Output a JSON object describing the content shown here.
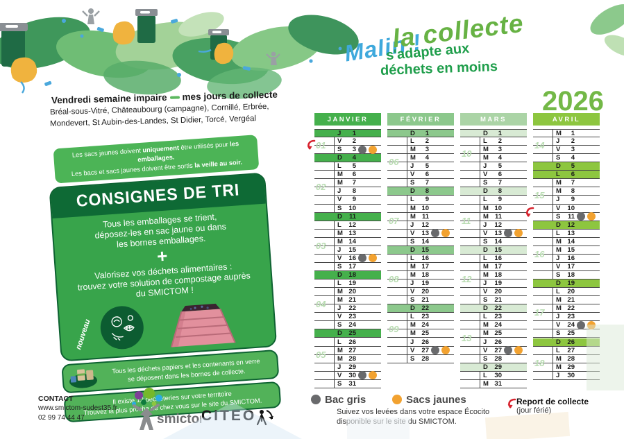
{
  "header": {
    "malin": "Malin !",
    "la_collecte": "la collecte",
    "subtitle_line1": "s'adapte aux",
    "subtitle_line2": "déchets en moins",
    "year": "2026"
  },
  "intro": {
    "title_left": "Vendredi semaine impaire",
    "title_right": "mes jours de collecte",
    "towns_line1": "Bréal-sous-Vitré, Châteaubourg (campagne), Cornillé, Erbrée,",
    "towns_line2": "Mondevert, St Aubin-des-Landes, St Didier, Torcé, Vergéal"
  },
  "bubble": {
    "line1": [
      {
        "t": "Les sacs jaunes doivent ",
        "b": 0
      },
      {
        "t": "uniquement",
        "b": 1
      },
      {
        "t": " être utilisés pour ",
        "b": 0
      },
      {
        "t": "les emballages.",
        "b": 1
      }
    ],
    "line2": [
      {
        "t": "Les bacs et sacs jaunes doivent être sortis ",
        "b": 0
      },
      {
        "t": "la veille au soir.",
        "b": 1
      }
    ]
  },
  "panel": {
    "title": "CONSIGNES DE TRI",
    "text1_l1": "Tous les emballages se trient,",
    "text1_l2": "déposez-les en sac jaune ou dans",
    "text1_l3": "les bornes emballages.",
    "plus": "+",
    "text2_l1": "Valorisez vos déchets alimentaires :",
    "text2_l2": "trouvez votre solution de compostage auprès",
    "text2_l3": "du SMICTOM !",
    "nouveau": "nouveau",
    "band1_l1": "Tous les déchets papiers et les contenants en verre",
    "band1_l2": "se déposent dans les bornes de collecte.",
    "band2_l1": "Il existe 12 déchèteries sur votre territoire",
    "band2_l2": "Trouvez la plus proche de chez vous sur le site du SMICTOM."
  },
  "calendar": {
    "day_letters": [
      "L",
      "M",
      "M",
      "J",
      "V",
      "S",
      "D"
    ],
    "months": [
      {
        "name": "JANVIER",
        "days": 31,
        "start": 3,
        "header_color": "#45b04c",
        "highlight_color": "#45b04c",
        "highlights": [
          1,
          4,
          11,
          18,
          25
        ],
        "dots": [
          3,
          16,
          30
        ],
        "weeks": [
          {
            "label": "01",
            "after": 2
          },
          {
            "label": "02",
            "after": 7
          },
          {
            "label": "03",
            "after": 14
          },
          {
            "label": "04",
            "after": 21
          },
          {
            "label": "05",
            "after": 27
          }
        ],
        "arrow_after": 2
      },
      {
        "name": "FÉVRIER",
        "days": 28,
        "start": 6,
        "header_color": "#8cc88c",
        "highlight_color": "#8cc88c",
        "highlights": [
          1,
          8,
          15,
          22
        ],
        "dots": [
          13,
          27
        ],
        "weeks": [
          {
            "label": "06",
            "after": 4
          },
          {
            "label": "07",
            "after": 11
          },
          {
            "label": "08",
            "after": 18
          },
          {
            "label": "09",
            "after": 24
          }
        ],
        "arrow_after": null
      },
      {
        "name": "MARS",
        "days": 31,
        "start": 6,
        "header_color": "#abd4a6",
        "highlight_color": "#d8ead4",
        "highlights": [
          1,
          8,
          15,
          22,
          29
        ],
        "dots": [
          13,
          27
        ],
        "weeks": [
          {
            "label": "10",
            "after": 3
          },
          {
            "label": "11",
            "after": 11
          },
          {
            "label": "12",
            "after": 18
          },
          {
            "label": "13",
            "after": 25
          }
        ],
        "arrow_after": null
      },
      {
        "name": "AVRIL",
        "days": 30,
        "start": 2,
        "header_color": "#8dc63f",
        "highlight_color": "#8dc63f",
        "highlights": [
          5,
          6,
          12,
          19,
          26
        ],
        "dots": [
          11,
          24
        ],
        "weeks": [
          {
            "label": "14",
            "after": 2
          },
          {
            "label": "15",
            "after": 8
          },
          {
            "label": "16",
            "after": 15
          },
          {
            "label": "17",
            "after": 22
          },
          {
            "label": "18",
            "after": 28
          }
        ],
        "arrow_after": 10
      }
    ]
  },
  "legend": {
    "bac_gris": "Bac gris",
    "sacs_jaunes": "Sacs jaunes",
    "note_line1": "Suivez vos levées dans votre espace Écocito",
    "note_line2": "disponible sur le site du SMICTOM.",
    "report_title": "Report de collecte",
    "report_sub": "(jour férié)"
  },
  "contact": {
    "label": "CONTACT",
    "website": "www.smictom-sudest35.fr",
    "phone": "02 99 74 44 47"
  },
  "logos": {
    "smictom": "smictom",
    "citeo": "CITEO"
  },
  "colors": {
    "bac_gris": "#696a6c",
    "sacs_jaunes": "#f2a230",
    "report_arrow": "#d7232e",
    "week_label": "#b9dcb2",
    "panel_green": "#38a44b",
    "panel_dark": "#0e6a35",
    "band_green": "#52b259",
    "bubble_green": "#4cb456"
  }
}
